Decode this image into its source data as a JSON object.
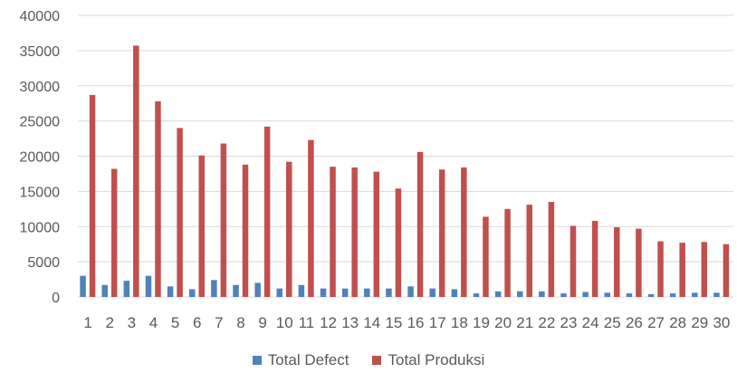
{
  "colors": {
    "defect": "#4f81bd",
    "produksi": "#c0504d"
  },
  "chart_data": {
    "type": "bar",
    "title": "",
    "xlabel": "",
    "ylabel": "",
    "ylim": [
      0,
      40000
    ],
    "yticks": [
      0,
      5000,
      10000,
      15000,
      20000,
      25000,
      30000,
      35000,
      40000
    ],
    "ytick_labels": [
      "0",
      "5000",
      "10000",
      "15000",
      "20000",
      "25000",
      "30000",
      "35000",
      "40000"
    ],
    "grid": true,
    "legend_position": "bottom",
    "categories": [
      "1",
      "2",
      "3",
      "4",
      "5",
      "6",
      "7",
      "8",
      "9",
      "10",
      "11",
      "12",
      "13",
      "14",
      "15",
      "16",
      "17",
      "18",
      "19",
      "20",
      "21",
      "22",
      "23",
      "24",
      "25",
      "26",
      "27",
      "28",
      "29",
      "30"
    ],
    "series": [
      {
        "name": "Total Defect",
        "values": [
          3000,
          1700,
          2300,
          3000,
          1500,
          1100,
          2400,
          1700,
          2000,
          1200,
          1700,
          1200,
          1200,
          1200,
          1200,
          1500,
          1200,
          1100,
          500,
          800,
          800,
          800,
          500,
          700,
          600,
          500,
          400,
          500,
          600,
          600
        ]
      },
      {
        "name": "Total Produksi",
        "values": [
          28700,
          18200,
          35700,
          27800,
          24000,
          20100,
          21800,
          18800,
          24200,
          19200,
          22300,
          18500,
          18400,
          17800,
          15400,
          20600,
          18100,
          18400,
          11400,
          12500,
          13100,
          13500,
          10100,
          10800,
          9900,
          9700,
          7900,
          7700,
          7800,
          7500
        ]
      }
    ]
  }
}
